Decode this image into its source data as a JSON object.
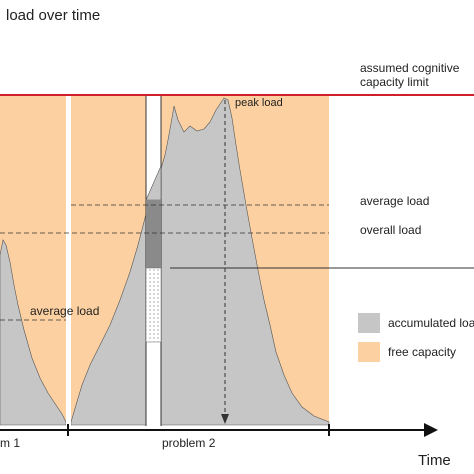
{
  "title": "load over time",
  "capacity_limit": {
    "label_line1": "assumed cognitive",
    "label_line2": "capacity limit",
    "color": "#d11f2a"
  },
  "annotations": {
    "peak_load": "peak load",
    "average_load_right": "average load",
    "overall_load": "overall load",
    "average_load_left": "average load"
  },
  "x_axis": {
    "label": "Time",
    "problem_1": "m 1",
    "problem_2": "problem 2"
  },
  "legend": {
    "items": [
      {
        "label": "accumulated loa",
        "color": "#c6c6c6"
      },
      {
        "label": "free capacity",
        "color": "#fcd0a0"
      }
    ]
  },
  "colors": {
    "free_capacity": "#fcd0a0",
    "load": "#c6c6c6",
    "accumulated": "#8a8a8a",
    "axis": "#111111"
  }
}
